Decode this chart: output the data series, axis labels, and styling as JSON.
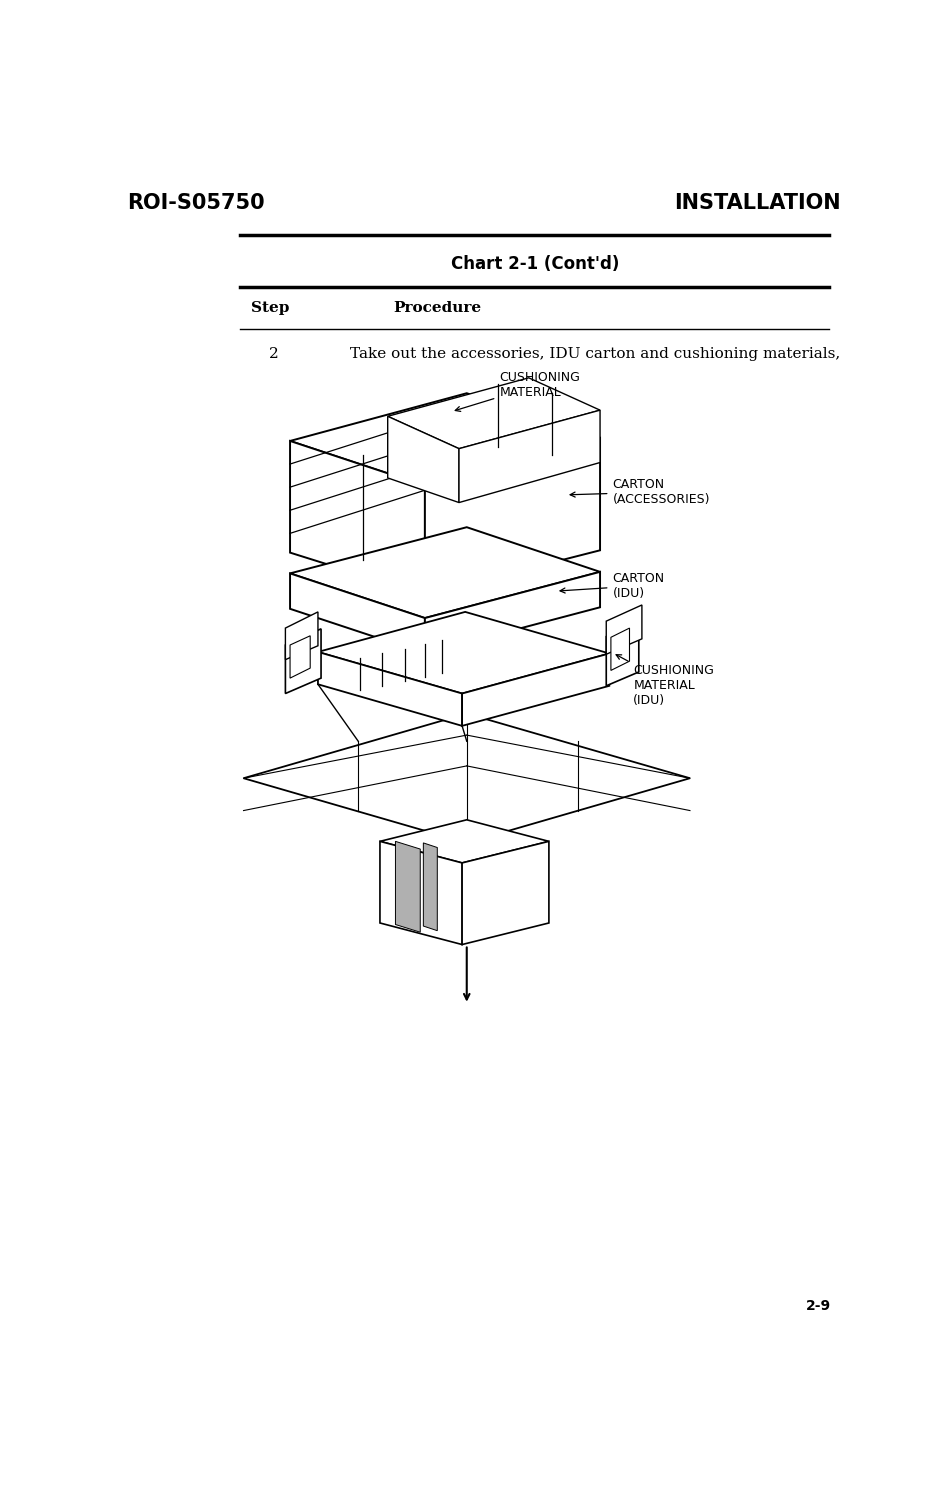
{
  "page_title_left": "ROI-S05750",
  "page_title_right": "INSTALLATION",
  "chart_title": "Chart 2-1 (Cont'd)",
  "step_label": "Step",
  "procedure_label": "Procedure",
  "step_number": "2",
  "step_text": "Take out the accessories, IDU carton and cushioning materials,",
  "label_cushioning_material": "CUSHIONING\nMATERIAL",
  "label_carton_accessories": "CARTON\n(ACCESSORIES)",
  "label_carton_idu": "CARTON\n(IDU)",
  "label_cushioning_material_idu": "CUSHIONING\nMATERIAL\n(IDU)",
  "page_number": "2-9",
  "bg_color": "#ffffff",
  "line_color": "#000000",
  "text_color": "#000000",
  "gray_color": "#b0b0b0"
}
